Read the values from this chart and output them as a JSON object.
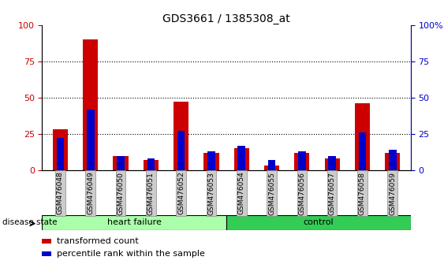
{
  "title": "GDS3661 / 1385308_at",
  "samples": [
    "GSM476048",
    "GSM476049",
    "GSM476050",
    "GSM476051",
    "GSM476052",
    "GSM476053",
    "GSM476054",
    "GSM476055",
    "GSM476056",
    "GSM476057",
    "GSM476058",
    "GSM476059"
  ],
  "transformed_count": [
    28,
    90,
    10,
    7,
    47,
    12,
    15,
    3,
    12,
    8,
    46,
    12
  ],
  "percentile_rank": [
    22,
    42,
    10,
    8,
    27,
    13,
    17,
    7,
    13,
    10,
    26,
    14
  ],
  "red_color": "#cc0000",
  "blue_color": "#0000cc",
  "red_bar_width": 0.5,
  "blue_bar_width": 0.25,
  "ylim": [
    0,
    100
  ],
  "yticks": [
    0,
    25,
    50,
    75,
    100
  ],
  "ytick_labels_left": [
    "0",
    "25",
    "50",
    "75",
    "100"
  ],
  "ytick_labels_right": [
    "0",
    "25",
    "50",
    "75",
    "100%"
  ],
  "groups": [
    {
      "label": "heart failure",
      "start": 0,
      "end": 6,
      "color": "#aaffaa"
    },
    {
      "label": "control",
      "start": 6,
      "end": 12,
      "color": "#33cc55"
    }
  ],
  "group_label_prefix": "disease state",
  "legend": [
    {
      "label": "transformed count",
      "color": "#cc0000"
    },
    {
      "label": "percentile rank within the sample",
      "color": "#0000cc"
    }
  ],
  "tick_label_bg": "#cccccc",
  "grid_color": "black"
}
